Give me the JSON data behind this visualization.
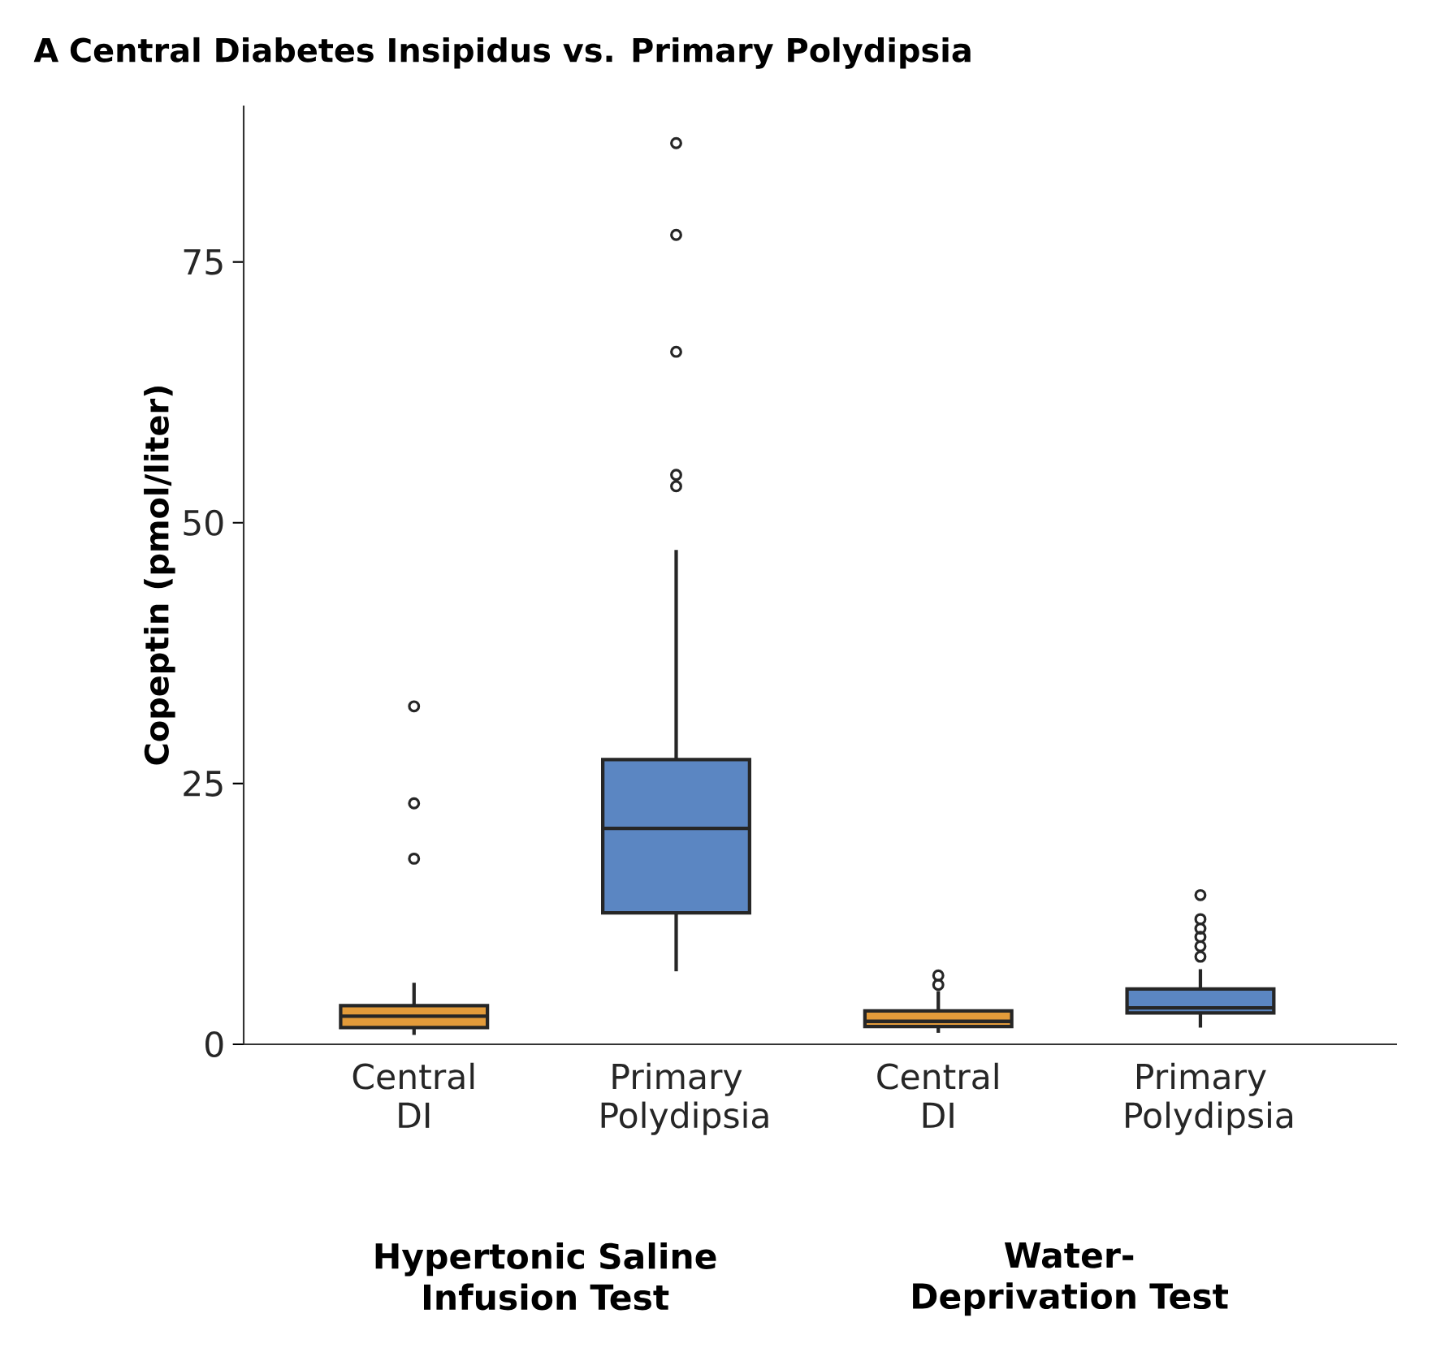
{
  "chart_data": {
    "type": "box",
    "title": "**A**  **Central Diabetes Insipidus vs. Primary Polydipsia**",
    "ylabel": "Copeptin (pmol/liter)",
    "categories": [
      "Central DI",
      "Primary Polydipsia",
      "Central DI",
      "Primary Polydipsia"
    ],
    "colors": [
      "#e39b3a",
      "#5b86c2",
      "#e39b3a",
      "#5b86c2"
    ],
    "boxes": [
      {
        "low": 0.9,
        "q1": 1.6,
        "median": 2.7,
        "q3": 3.7,
        "high": 5.9,
        "outliers": [
          17.8,
          23.1,
          32.4
        ]
      },
      {
        "low": 7.0,
        "q1": 12.6,
        "median": 20.7,
        "q3": 27.3,
        "high": 47.4,
        "outliers": [
          53.5,
          54.6,
          66.4,
          77.6,
          86.4
        ]
      },
      {
        "low": 1.1,
        "q1": 1.7,
        "median": 2.2,
        "q3": 3.2,
        "high": 5.1,
        "outliers": [
          5.7,
          6.6
        ]
      },
      {
        "low": 1.6,
        "q1": 3.0,
        "median": 3.5,
        "q3": 5.3,
        "high": 7.2,
        "outliers": [
          8.4,
          9.4,
          10.3,
          11.1,
          12.0,
          14.3
        ]
      }
    ],
    "ylim": [
      0,
      90
    ],
    "yticks": [
      0,
      25,
      50,
      75
    ],
    "annotations": [
      "**Hypertonic Saline Infusion Test**",
      "**Water-Deprivation Test**"
    ]
  }
}
